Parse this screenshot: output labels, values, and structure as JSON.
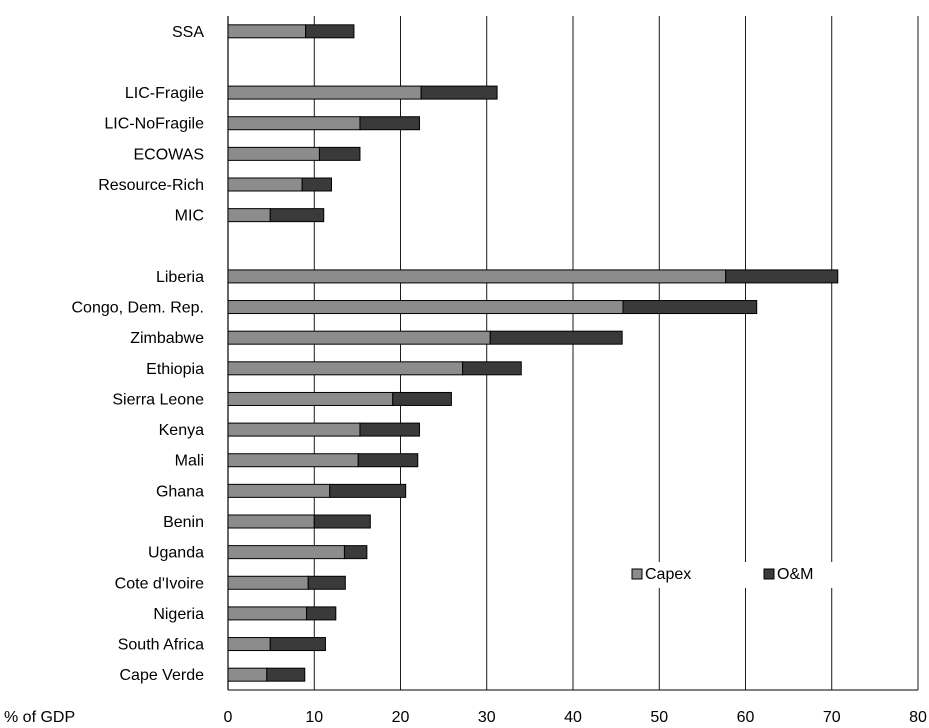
{
  "chart_data": {
    "type": "bar",
    "orientation": "horizontal",
    "stacked": true,
    "title": "",
    "xlabel": "% of GDP",
    "ylabel": "",
    "xlim": [
      0,
      80
    ],
    "xticks": [
      "0",
      "10",
      "20",
      "30",
      "40",
      "50",
      "60",
      "70",
      "80"
    ],
    "grid": "vertical",
    "legend_position": "lower-right",
    "categories": [
      "SSA",
      "",
      "LIC-Fragile",
      "LIC-NoFragile",
      "ECOWAS",
      "Resource-Rich",
      "MIC",
      "",
      "Liberia",
      "Congo, Dem. Rep.",
      "Zimbabwe",
      "Ethiopia",
      "Sierra Leone",
      "Kenya",
      "Mali",
      "Ghana",
      "Benin",
      "Uganda",
      "Cote d'Ivoire",
      "Nigeria",
      "South Africa",
      "Cape Verde"
    ],
    "series": [
      {
        "name": "Capex",
        "color": "#8c8c8c",
        "values": [
          9.0,
          null,
          22.4,
          15.3,
          10.6,
          8.6,
          4.9,
          null,
          57.7,
          45.8,
          30.4,
          27.2,
          19.1,
          15.3,
          15.1,
          11.8,
          10.0,
          13.5,
          9.3,
          9.1,
          4.9,
          4.5
        ]
      },
      {
        "name": "O&M",
        "color": "#3a3a3a",
        "values": [
          5.6,
          null,
          8.8,
          6.9,
          4.7,
          3.4,
          6.2,
          null,
          13.0,
          15.5,
          15.3,
          6.8,
          6.8,
          6.9,
          6.9,
          8.8,
          6.5,
          2.6,
          4.3,
          3.4,
          6.4,
          4.4
        ]
      }
    ]
  }
}
